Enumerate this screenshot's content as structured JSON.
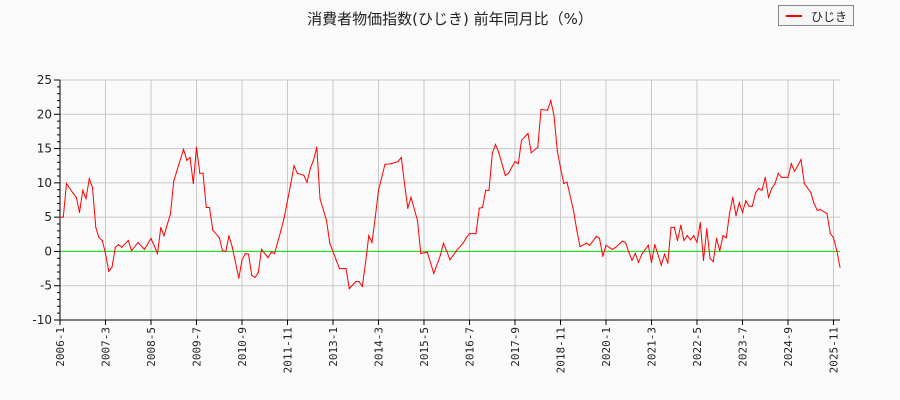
{
  "chart_data": {
    "type": "line",
    "title": "消費者物価指数(ひじき) 前年同月比（%）",
    "xlabel": "",
    "ylabel": "",
    "ylim": [
      -10,
      25
    ],
    "yticks": [
      "25",
      "20",
      "15",
      "10",
      "5",
      "0",
      "-5",
      "-10"
    ],
    "xlim": [
      "2006-01",
      "2026-01"
    ],
    "xticks": [
      "2006-1",
      "2007-3",
      "2008-5",
      "2009-7",
      "2010-9",
      "2011-11",
      "2013-1",
      "2014-3",
      "2015-5",
      "2016-7",
      "2017-9",
      "2018-11",
      "2020-1",
      "2021-3",
      "2022-5",
      "2023-7",
      "2024-9",
      "2025-11"
    ],
    "grid": true,
    "legend_position": "top-right",
    "zero_line_color": "#00dd00",
    "series": [
      {
        "name": "ひじき",
        "color": "#ff0000",
        "points": [
          [
            "2006-01",
            5.0
          ],
          [
            "2006-02",
            5.0
          ],
          [
            "2006-03",
            9.9
          ],
          [
            "2006-05",
            8.5
          ],
          [
            "2006-06",
            7.9
          ],
          [
            "2006-07",
            5.7
          ],
          [
            "2006-08",
            8.9
          ],
          [
            "2006-09",
            7.7
          ],
          [
            "2006-10",
            10.6
          ],
          [
            "2006-11",
            9.3
          ],
          [
            "2006-12",
            3.5
          ],
          [
            "2007-01",
            2.0
          ],
          [
            "2007-02",
            1.6
          ],
          [
            "2007-03",
            -0.3
          ],
          [
            "2007-04",
            -2.9
          ],
          [
            "2007-05",
            -2.3
          ],
          [
            "2007-06",
            0.6
          ],
          [
            "2007-07",
            1.0
          ],
          [
            "2007-08",
            0.6
          ],
          [
            "2007-10",
            1.6
          ],
          [
            "2007-11",
            0.1
          ],
          [
            "2008-01",
            1.3
          ],
          [
            "2008-03",
            0.3
          ],
          [
            "2008-05",
            1.9
          ],
          [
            "2008-07",
            -0.3
          ],
          [
            "2008-08",
            3.5
          ],
          [
            "2008-09",
            2.3
          ],
          [
            "2008-11",
            5.5
          ],
          [
            "2008-12",
            10.3
          ],
          [
            "2009-03",
            14.9
          ],
          [
            "2009-04",
            13.3
          ],
          [
            "2009-05",
            13.7
          ],
          [
            "2009-06",
            9.9
          ],
          [
            "2009-07",
            15.2
          ],
          [
            "2009-08",
            11.4
          ],
          [
            "2009-09",
            11.4
          ],
          [
            "2009-10",
            6.4
          ],
          [
            "2009-11",
            6.4
          ],
          [
            "2009-12",
            3.1
          ],
          [
            "2010-02",
            2.0
          ],
          [
            "2010-03",
            0.1
          ],
          [
            "2010-04",
            0.0
          ],
          [
            "2010-05",
            2.3
          ],
          [
            "2010-06",
            0.6
          ],
          [
            "2010-08",
            -3.9
          ],
          [
            "2010-09",
            -1.3
          ],
          [
            "2010-10",
            -0.3
          ],
          [
            "2010-11",
            -0.4
          ],
          [
            "2010-12",
            -3.5
          ],
          [
            "2011-01",
            -3.8
          ],
          [
            "2011-02",
            -3.1
          ],
          [
            "2011-03",
            0.3
          ],
          [
            "2011-05",
            -0.9
          ],
          [
            "2011-06",
            -0.1
          ],
          [
            "2011-07",
            -0.3
          ],
          [
            "2011-09",
            3.1
          ],
          [
            "2011-10",
            5.0
          ],
          [
            "2011-12",
            9.9
          ],
          [
            "2012-01",
            12.5
          ],
          [
            "2012-02",
            11.4
          ],
          [
            "2012-04",
            11.1
          ],
          [
            "2012-05",
            10.1
          ],
          [
            "2012-06",
            12.1
          ],
          [
            "2012-07",
            13.3
          ],
          [
            "2012-08",
            15.2
          ],
          [
            "2012-09",
            7.7
          ],
          [
            "2012-11",
            4.5
          ],
          [
            "2012-12",
            1.2
          ],
          [
            "2013-02",
            -1.3
          ],
          [
            "2013-03",
            -2.5
          ],
          [
            "2013-05",
            -2.5
          ],
          [
            "2013-06",
            -5.4
          ],
          [
            "2013-08",
            -4.4
          ],
          [
            "2013-09",
            -4.4
          ],
          [
            "2013-10",
            -5.1
          ],
          [
            "2013-11",
            -1.7
          ],
          [
            "2013-12",
            2.3
          ],
          [
            "2014-01",
            1.3
          ],
          [
            "2014-02",
            5.0
          ],
          [
            "2014-03",
            8.9
          ],
          [
            "2014-05",
            12.7
          ],
          [
            "2014-07",
            12.8
          ],
          [
            "2014-09",
            13.1
          ],
          [
            "2014-10",
            13.7
          ],
          [
            "2014-11",
            9.9
          ],
          [
            "2014-12",
            6.3
          ],
          [
            "2015-01",
            7.9
          ],
          [
            "2015-03",
            4.5
          ],
          [
            "2015-04",
            -0.3
          ],
          [
            "2015-06",
            -0.1
          ],
          [
            "2015-08",
            -3.2
          ],
          [
            "2015-10",
            -0.6
          ],
          [
            "2015-11",
            1.2
          ],
          [
            "2016-01",
            -1.2
          ],
          [
            "2016-03",
            0.1
          ],
          [
            "2016-05",
            1.2
          ],
          [
            "2016-06",
            2.0
          ],
          [
            "2016-07",
            2.6
          ],
          [
            "2016-09",
            2.6
          ],
          [
            "2016-10",
            6.3
          ],
          [
            "2016-11",
            6.4
          ],
          [
            "2016-12",
            8.9
          ],
          [
            "2017-01",
            8.9
          ],
          [
            "2017-02",
            14.3
          ],
          [
            "2017-03",
            15.6
          ],
          [
            "2017-04",
            14.4
          ],
          [
            "2017-06",
            11.1
          ],
          [
            "2017-07",
            11.4
          ],
          [
            "2017-09",
            13.1
          ],
          [
            "2017-10",
            12.8
          ],
          [
            "2017-11",
            16.2
          ],
          [
            "2018-01",
            17.2
          ],
          [
            "2018-02",
            14.4
          ],
          [
            "2018-04",
            15.2
          ],
          [
            "2018-05",
            20.7
          ],
          [
            "2018-07",
            20.6
          ],
          [
            "2018-08",
            22.0
          ],
          [
            "2018-09",
            19.8
          ],
          [
            "2018-10",
            14.7
          ],
          [
            "2018-11",
            12.2
          ],
          [
            "2018-12",
            9.9
          ],
          [
            "2019-01",
            10.1
          ],
          [
            "2019-03",
            6.0
          ],
          [
            "2019-04",
            3.1
          ],
          [
            "2019-05",
            0.7
          ],
          [
            "2019-07",
            1.2
          ],
          [
            "2019-08",
            0.9
          ],
          [
            "2019-10",
            2.2
          ],
          [
            "2019-11",
            1.9
          ],
          [
            "2019-12",
            -0.7
          ],
          [
            "2020-01",
            0.9
          ],
          [
            "2020-03",
            0.3
          ],
          [
            "2020-04",
            0.6
          ],
          [
            "2020-06",
            1.5
          ],
          [
            "2020-07",
            1.3
          ],
          [
            "2020-08",
            -0.1
          ],
          [
            "2020-09",
            -1.3
          ],
          [
            "2020-10",
            -0.3
          ],
          [
            "2020-11",
            -1.6
          ],
          [
            "2020-12",
            -0.4
          ],
          [
            "2021-02",
            0.9
          ],
          [
            "2021-03",
            -1.6
          ],
          [
            "2021-04",
            1.0
          ],
          [
            "2021-06",
            -2.0
          ],
          [
            "2021-07",
            -0.4
          ],
          [
            "2021-08",
            -1.7
          ],
          [
            "2021-09",
            3.5
          ],
          [
            "2021-10",
            3.5
          ],
          [
            "2021-11",
            1.6
          ],
          [
            "2021-12",
            3.8
          ],
          [
            "2022-01",
            1.6
          ],
          [
            "2022-02",
            2.3
          ],
          [
            "2022-03",
            1.7
          ],
          [
            "2022-04",
            2.3
          ],
          [
            "2022-05",
            1.3
          ],
          [
            "2022-06",
            4.2
          ],
          [
            "2022-07",
            -1.3
          ],
          [
            "2022-08",
            3.3
          ],
          [
            "2022-09",
            -1.0
          ],
          [
            "2022-10",
            -1.5
          ],
          [
            "2022-11",
            1.9
          ],
          [
            "2022-12",
            0.1
          ],
          [
            "2023-01",
            2.3
          ],
          [
            "2023-02",
            2.0
          ],
          [
            "2023-03",
            5.5
          ],
          [
            "2023-04",
            7.9
          ],
          [
            "2023-05",
            5.2
          ],
          [
            "2023-06",
            7.1
          ],
          [
            "2023-07",
            5.7
          ],
          [
            "2023-08",
            7.4
          ],
          [
            "2023-09",
            6.6
          ],
          [
            "2023-10",
            6.6
          ],
          [
            "2023-11",
            8.5
          ],
          [
            "2023-12",
            9.2
          ],
          [
            "2024-01",
            8.9
          ],
          [
            "2024-02",
            10.8
          ],
          [
            "2024-03",
            7.9
          ],
          [
            "2024-04",
            9.2
          ],
          [
            "2024-05",
            9.9
          ],
          [
            "2024-06",
            11.4
          ],
          [
            "2024-07",
            10.8
          ],
          [
            "2024-09",
            10.8
          ],
          [
            "2024-10",
            12.8
          ],
          [
            "2024-11",
            11.7
          ],
          [
            "2024-12",
            12.5
          ],
          [
            "2025-01",
            13.4
          ],
          [
            "2025-02",
            9.9
          ],
          [
            "2025-04",
            8.6
          ],
          [
            "2025-05",
            7.0
          ],
          [
            "2025-06",
            6.0
          ],
          [
            "2025-07",
            6.1
          ],
          [
            "2025-09",
            5.5
          ],
          [
            "2025-10",
            2.6
          ],
          [
            "2025-11",
            2.0
          ],
          [
            "2025-12",
            0.1
          ],
          [
            "2026-01",
            -2.3
          ]
        ]
      }
    ]
  }
}
